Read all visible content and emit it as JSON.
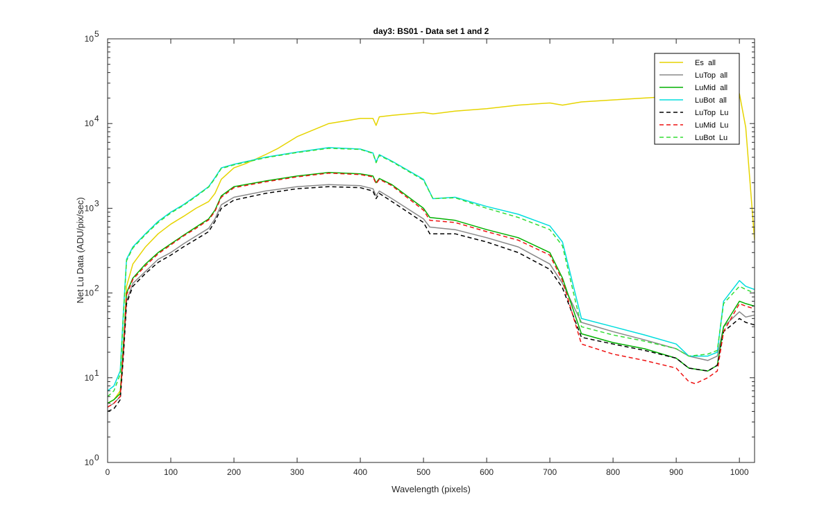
{
  "chart_data": {
    "type": "line",
    "title": "day3: BS01 - Data set 1 and 2",
    "xlabel": "Wavelength (pixels)",
    "ylabel": "Net Lu Data (ADU/pix/sec)",
    "xlim": [
      0,
      1024
    ],
    "ylim": [
      1,
      100000
    ],
    "yscale": "log",
    "grid": false,
    "legend_position": "top-right",
    "x_ticks": [
      0,
      100,
      200,
      300,
      400,
      500,
      600,
      700,
      800,
      900,
      1000
    ],
    "x_tick_labels": [
      "0",
      "100",
      "200",
      "300",
      "400",
      "500",
      "600",
      "700",
      "800",
      "900",
      "1000"
    ],
    "y_ticks": [
      1,
      10,
      100,
      1000,
      10000,
      100000
    ],
    "y_tick_labels": [
      {
        "base": "10",
        "exp": "0"
      },
      {
        "base": "10",
        "exp": "1"
      },
      {
        "base": "10",
        "exp": "2"
      },
      {
        "base": "10",
        "exp": "3"
      },
      {
        "base": "10",
        "exp": "4"
      },
      {
        "base": "10",
        "exp": "5"
      }
    ],
    "series": [
      {
        "name": "Es  all",
        "color": "#e6d400",
        "dash": "solid",
        "x": [
          0,
          10,
          20,
          25,
          30,
          40,
          60,
          80,
          100,
          120,
          140,
          160,
          170,
          180,
          200,
          220,
          250,
          270,
          300,
          350,
          400,
          420,
          425,
          430,
          450,
          500,
          515,
          550,
          600,
          650,
          700,
          720,
          750,
          800,
          850,
          900,
          950,
          1000,
          1010,
          1024
        ],
        "y": [
          5,
          5.5,
          7,
          20,
          120,
          220,
          350,
          500,
          650,
          800,
          1000,
          1200,
          1500,
          2200,
          3000,
          3400,
          4300,
          5100,
          7000,
          10000,
          11500,
          11500,
          9500,
          12000,
          12500,
          13500,
          13000,
          14000,
          15000,
          16500,
          17500,
          16500,
          18000,
          19000,
          20000,
          21000,
          21500,
          22500,
          9000,
          420
        ]
      },
      {
        "name": "LuTop  all",
        "color": "#888888",
        "dash": "solid",
        "x": [
          0,
          10,
          20,
          25,
          30,
          40,
          60,
          80,
          100,
          120,
          140,
          160,
          170,
          180,
          200,
          250,
          300,
          350,
          400,
          420,
          425,
          430,
          450,
          500,
          510,
          550,
          600,
          650,
          700,
          720,
          750,
          800,
          850,
          900,
          920,
          950,
          965,
          975,
          1000,
          1010,
          1024
        ],
        "y": [
          4.5,
          5,
          6,
          20,
          80,
          130,
          180,
          250,
          300,
          380,
          470,
          580,
          750,
          1100,
          1350,
          1600,
          1800,
          1900,
          1850,
          1700,
          1400,
          1600,
          1300,
          750,
          600,
          560,
          450,
          350,
          220,
          130,
          45,
          35,
          28,
          22,
          18,
          16,
          18,
          40,
          60,
          52,
          55
        ]
      },
      {
        "name": "LuMid  all",
        "color": "#00b000",
        "dash": "solid",
        "x": [
          0,
          10,
          20,
          25,
          30,
          40,
          60,
          80,
          100,
          120,
          140,
          160,
          170,
          180,
          200,
          250,
          300,
          350,
          400,
          420,
          425,
          430,
          450,
          500,
          510,
          550,
          600,
          650,
          700,
          720,
          750,
          800,
          850,
          900,
          920,
          950,
          965,
          975,
          1000,
          1010,
          1024
        ],
        "y": [
          5,
          5.5,
          6.5,
          25,
          100,
          150,
          220,
          300,
          380,
          480,
          600,
          750,
          950,
          1400,
          1800,
          2100,
          2400,
          2650,
          2550,
          2400,
          2000,
          2250,
          1900,
          1000,
          780,
          720,
          560,
          450,
          300,
          150,
          33,
          26,
          22,
          17,
          13,
          12,
          14,
          40,
          80,
          75,
          70
        ]
      },
      {
        "name": "LuBot  all",
        "color": "#00dddd",
        "dash": "solid",
        "x": [
          0,
          10,
          20,
          25,
          30,
          40,
          60,
          80,
          100,
          120,
          140,
          160,
          170,
          180,
          200,
          250,
          300,
          350,
          400,
          420,
          425,
          430,
          450,
          500,
          515,
          550,
          600,
          650,
          700,
          720,
          750,
          800,
          850,
          900,
          920,
          950,
          965,
          975,
          1000,
          1010,
          1024
        ],
        "y": [
          7,
          8,
          12,
          60,
          250,
          350,
          500,
          700,
          900,
          1100,
          1400,
          1800,
          2300,
          3000,
          3300,
          4000,
          4600,
          5200,
          5000,
          4500,
          3500,
          4300,
          3600,
          2200,
          1300,
          1350,
          1050,
          850,
          620,
          400,
          50,
          40,
          32,
          25,
          18,
          18,
          20,
          80,
          140,
          120,
          110
        ]
      },
      {
        "name": "LuTop  Lu",
        "color": "#000000",
        "dash": "dashed",
        "x": [
          0,
          10,
          20,
          25,
          30,
          40,
          60,
          80,
          100,
          120,
          140,
          160,
          170,
          180,
          200,
          250,
          300,
          350,
          400,
          420,
          425,
          430,
          450,
          500,
          510,
          550,
          600,
          650,
          700,
          720,
          750,
          800,
          850,
          900,
          920,
          950,
          965,
          975,
          1000,
          1010,
          1024
        ],
        "y": [
          4,
          4.3,
          5.5,
          18,
          75,
          120,
          170,
          230,
          280,
          350,
          430,
          530,
          700,
          1000,
          1250,
          1500,
          1700,
          1800,
          1750,
          1600,
          1300,
          1500,
          1200,
          680,
          500,
          500,
          400,
          300,
          190,
          115,
          30,
          25,
          21,
          17,
          13,
          12,
          14,
          35,
          50,
          45,
          42
        ]
      },
      {
        "name": "LuMid  Lu",
        "color": "#ee1111",
        "dash": "dashed",
        "x": [
          0,
          10,
          20,
          25,
          30,
          40,
          60,
          80,
          100,
          120,
          140,
          160,
          170,
          180,
          200,
          250,
          300,
          350,
          400,
          420,
          425,
          430,
          450,
          500,
          510,
          550,
          600,
          650,
          700,
          720,
          750,
          800,
          850,
          900,
          920,
          930,
          950,
          965,
          975,
          1000,
          1010,
          1024
        ],
        "y": [
          4.5,
          5,
          6,
          22,
          95,
          145,
          210,
          290,
          370,
          470,
          580,
          730,
          920,
          1350,
          1750,
          2050,
          2350,
          2600,
          2500,
          2350,
          1950,
          2200,
          1850,
          950,
          720,
          680,
          530,
          420,
          280,
          140,
          25,
          19,
          16,
          13,
          9,
          8.5,
          10,
          12,
          35,
          75,
          70,
          65
        ]
      },
      {
        "name": "LuBot  Lu",
        "color": "#33dd33",
        "dash": "dashed",
        "x": [
          0,
          10,
          20,
          25,
          30,
          40,
          60,
          80,
          100,
          120,
          140,
          160,
          170,
          180,
          200,
          250,
          300,
          350,
          400,
          420,
          425,
          430,
          450,
          500,
          515,
          550,
          600,
          650,
          700,
          720,
          750,
          800,
          850,
          900,
          920,
          950,
          965,
          975,
          1000,
          1010,
          1024
        ],
        "y": [
          6,
          7,
          11,
          55,
          240,
          340,
          490,
          680,
          880,
          1080,
          1380,
          1780,
          2250,
          2950,
          3250,
          3950,
          4550,
          5100,
          4950,
          4450,
          3450,
          4200,
          3550,
          2150,
          1300,
          1330,
          1000,
          780,
          560,
          360,
          40,
          32,
          27,
          22,
          18,
          19,
          21,
          75,
          120,
          110,
          100
        ]
      }
    ]
  }
}
